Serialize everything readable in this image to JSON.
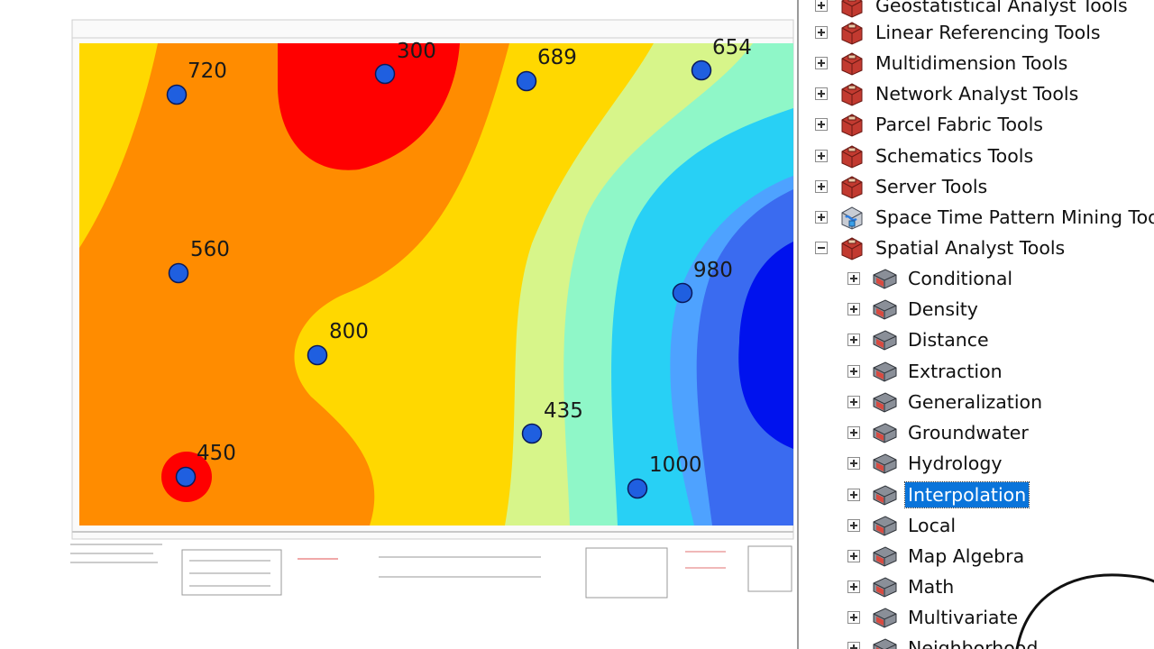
{
  "map": {
    "points": [
      {
        "label": "720"
      },
      {
        "label": "300"
      },
      {
        "label": "689"
      },
      {
        "label": "654"
      },
      {
        "label": "560"
      },
      {
        "label": "980"
      },
      {
        "label": "800"
      },
      {
        "label": "435"
      },
      {
        "label": "450"
      },
      {
        "label": "1000"
      }
    ],
    "colors": {
      "red": "#ff0000",
      "orange": "#ff8c00",
      "yellow": "#ffd800",
      "light_green": "#d7f58a",
      "aqua_green": "#8ff7c8",
      "cyan": "#28d0f5",
      "light_blue": "#4ea2ff",
      "blue": "#3a6bf0",
      "dark_blue": "#0012ee",
      "point_fill": "#1f5fe0"
    }
  },
  "toolbox": {
    "items": [
      {
        "label": "Geostatistical Analyst Tools",
        "expander": "plus",
        "icon": "toolbox-icon"
      },
      {
        "label": "Linear Referencing Tools",
        "expander": "plus",
        "icon": "toolbox-icon"
      },
      {
        "label": "Multidimension Tools",
        "expander": "plus",
        "icon": "toolbox-icon"
      },
      {
        "label": "Network Analyst Tools",
        "expander": "plus",
        "icon": "toolbox-icon"
      },
      {
        "label": "Parcel Fabric Tools",
        "expander": "plus",
        "icon": "toolbox-icon"
      },
      {
        "label": "Schematics Tools",
        "expander": "plus",
        "icon": "toolbox-icon"
      },
      {
        "label": "Server Tools",
        "expander": "plus",
        "icon": "toolbox-icon"
      },
      {
        "label": "Space Time Pattern Mining Toolbox",
        "expander": "plus",
        "icon": "script-toolbox-icon"
      },
      {
        "label": "Spatial Analyst Tools",
        "expander": "minus",
        "icon": "toolbox-icon"
      }
    ],
    "subitems": [
      {
        "label": "Conditional",
        "icon": "toolset-icon"
      },
      {
        "label": "Density",
        "icon": "toolset-icon"
      },
      {
        "label": "Distance",
        "icon": "toolset-icon"
      },
      {
        "label": "Extraction",
        "icon": "toolset-icon"
      },
      {
        "label": "Generalization",
        "icon": "toolset-icon"
      },
      {
        "label": "Groundwater",
        "icon": "toolset-icon"
      },
      {
        "label": "Hydrology",
        "icon": "toolset-icon"
      },
      {
        "label": "Interpolation",
        "icon": "toolset-icon",
        "selected": true
      },
      {
        "label": "Local",
        "icon": "toolset-icon"
      },
      {
        "label": "Map Algebra",
        "icon": "toolset-icon"
      },
      {
        "label": "Math",
        "icon": "toolset-icon"
      },
      {
        "label": "Multivariate",
        "icon": "toolset-icon"
      },
      {
        "label": "Neighborhood",
        "icon": "toolset-icon"
      }
    ]
  }
}
